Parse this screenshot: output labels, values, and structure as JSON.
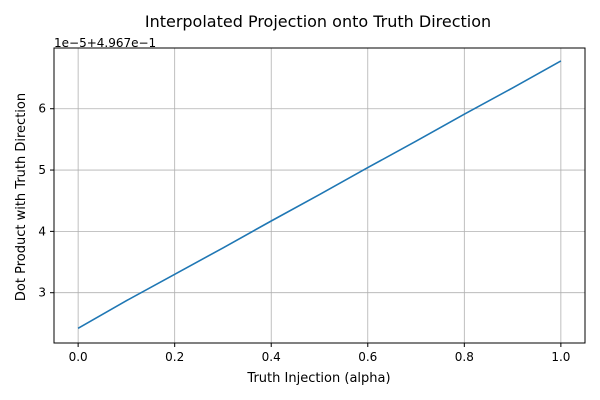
{
  "chart_data": {
    "type": "line",
    "title": "Interpolated Projection onto Truth Direction",
    "xlabel": "Truth Injection (alpha)",
    "ylabel": "Dot Product with Truth Direction",
    "axis_offset_text": "1e−5+4.967e−1",
    "xlim": [
      -0.05,
      1.05
    ],
    "ylim": [
      2.18,
      6.99
    ],
    "x_ticks": [
      0.0,
      0.2,
      0.4,
      0.6,
      0.8,
      1.0
    ],
    "x_tick_labels": [
      "0.0",
      "0.2",
      "0.4",
      "0.6",
      "0.8",
      "1.0"
    ],
    "y_ticks": [
      3,
      4,
      5,
      6
    ],
    "y_tick_labels": [
      "3",
      "4",
      "5",
      "6"
    ],
    "grid": true,
    "series": [
      {
        "color": "#1f77b4",
        "x": [
          0.0,
          0.1,
          0.2,
          0.3,
          0.4,
          0.5,
          0.6,
          0.7,
          0.8,
          0.9,
          1.0
        ],
        "y": [
          2.42,
          2.87,
          3.3,
          3.73,
          4.17,
          4.6,
          5.04,
          5.47,
          5.91,
          6.34,
          6.78
        ]
      }
    ]
  }
}
